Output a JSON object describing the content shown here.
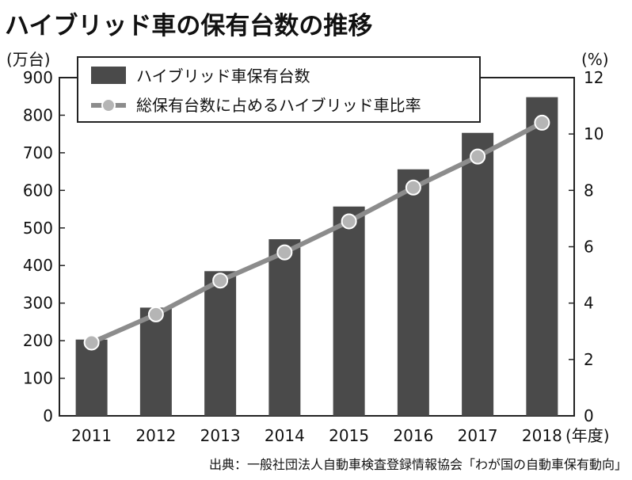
{
  "title": "ハイブリッド車の保有台数の推移",
  "source": "出典：一般社団法人自動車検査登録情報協会「わが国の自動車保有動向」",
  "chart_data": {
    "type": "bar",
    "categories": [
      "2011",
      "2012",
      "2013",
      "2014",
      "2015",
      "2016",
      "2017",
      "2018"
    ],
    "x_unit": "(年度)",
    "series": [
      {
        "name": "ハイブリッド車保有台数",
        "type": "bar",
        "axis": "left",
        "values": [
          203,
          288,
          385,
          470,
          557,
          656,
          753,
          848
        ],
        "color": "#4a4a4a"
      },
      {
        "name": "総保有台数に占めるハイブリッド車比率",
        "type": "line",
        "axis": "right",
        "values": [
          2.6,
          3.6,
          4.8,
          5.8,
          6.9,
          8.1,
          9.2,
          10.4
        ],
        "color": "#8c8c8c"
      }
    ],
    "y_left": {
      "unit": "(万台)",
      "range": [
        0,
        900
      ],
      "ticks": [
        0,
        100,
        200,
        300,
        400,
        500,
        600,
        700,
        800,
        900
      ]
    },
    "y_right": {
      "unit": "(%)",
      "range": [
        0,
        12
      ],
      "ticks": [
        0,
        2,
        4,
        6,
        8,
        10,
        12
      ]
    },
    "legend": "top-left",
    "grid": false
  }
}
